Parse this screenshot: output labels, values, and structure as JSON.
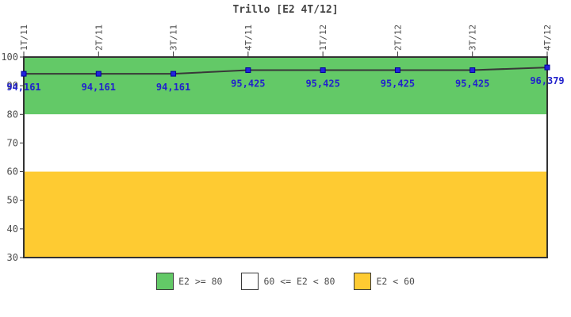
{
  "chart_data": {
    "type": "line",
    "title": "Trillo [E2 4T/12]",
    "x": [
      "1T/11",
      "2T/11",
      "3T/11",
      "4T/11",
      "1T/12",
      "2T/12",
      "3T/12",
      "4T/12"
    ],
    "values": [
      94.161,
      94.161,
      94.161,
      95.425,
      95.425,
      95.425,
      95.425,
      96.379
    ],
    "point_labels": [
      "94,161",
      "94,161",
      "94,161",
      "95,425",
      "95,425",
      "95,425",
      "95,425",
      "96,379"
    ],
    "ylim": [
      30,
      100
    ],
    "yticks": [
      100,
      90,
      80,
      70,
      60,
      50,
      40,
      30
    ],
    "grid": false,
    "legend_position": "bottom",
    "bands": [
      {
        "label": "E2 >= 80",
        "from": 80,
        "to": 100,
        "color": "#63C967"
      },
      {
        "label": "60 <= E2 < 80",
        "from": 60,
        "to": 80,
        "color": "#FFFFFF"
      },
      {
        "label": "E2 < 60",
        "from": 30,
        "to": 60,
        "color": "#FECB32"
      }
    ],
    "colors": {
      "line": "#383838",
      "marker_fill": "#2222DD",
      "marker_stroke": "#000099",
      "point_label": "#2222CC",
      "axis": "#333333",
      "tick_text": "#4d4d4d",
      "title_text": "#444444"
    }
  }
}
